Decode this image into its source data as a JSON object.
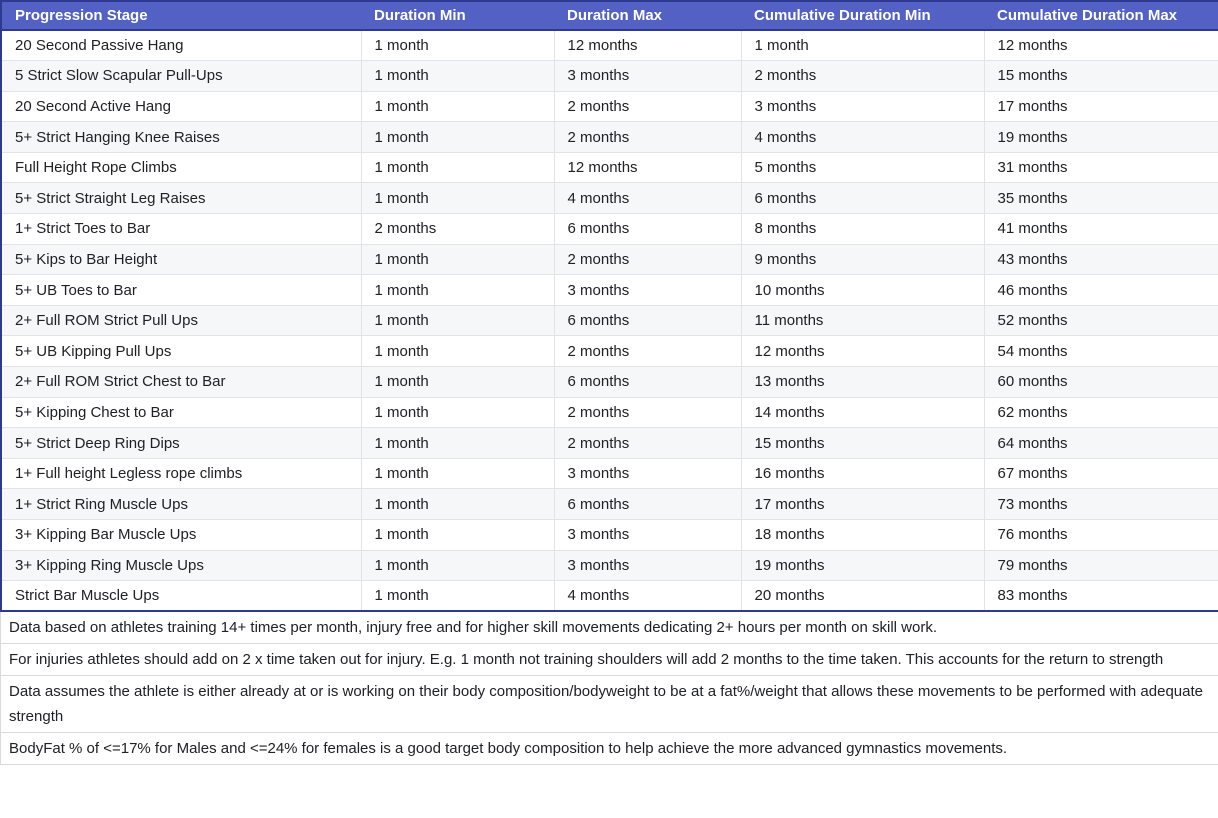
{
  "colors": {
    "header_bg": "#5361c4",
    "header_text": "#ffffff",
    "outer_border": "#2e3a8e",
    "row_stripe": "#f6f7f9",
    "grid_line": "#e2e3e5",
    "note_separator": "#d9dadc",
    "body_text": "#202124"
  },
  "table": {
    "columns": [
      "Progression Stage",
      "Duration Min",
      "Duration Max",
      "Cumulative Duration Min",
      "Cumulative Duration Max"
    ],
    "rows": [
      [
        "20 Second Passive Hang",
        "1 month",
        "12 months",
        "1 month",
        "12 months"
      ],
      [
        "5 Strict Slow Scapular Pull-Ups",
        "1 month",
        "3 months",
        "2 months",
        "15 months"
      ],
      [
        "20 Second Active Hang",
        "1 month",
        "2 months",
        "3 months",
        "17 months"
      ],
      [
        "5+ Strict Hanging Knee Raises",
        "1 month",
        "2 months",
        "4 months",
        "19 months"
      ],
      [
        "Full Height Rope Climbs",
        "1 month",
        "12 months",
        "5 months",
        "31 months"
      ],
      [
        "5+ Strict Straight Leg Raises",
        "1 month",
        "4 months",
        "6 months",
        "35 months"
      ],
      [
        "1+ Strict Toes to Bar",
        "2 months",
        "6 months",
        "8 months",
        "41 months"
      ],
      [
        "5+ Kips to Bar Height",
        "1 month",
        "2 months",
        "9 months",
        "43 months"
      ],
      [
        "5+ UB Toes to Bar",
        "1 month",
        "3 months",
        "10 months",
        "46 months"
      ],
      [
        "2+ Full ROM Strict Pull Ups",
        "1 month",
        "6 months",
        "11 months",
        "52 months"
      ],
      [
        "5+ UB Kipping Pull Ups",
        "1 month",
        "2 months",
        "12 months",
        "54 months"
      ],
      [
        "2+ Full ROM Strict Chest to Bar",
        "1 month",
        "6 months",
        "13 months",
        "60 months"
      ],
      [
        "5+ Kipping Chest to Bar",
        "1 month",
        "2 months",
        "14 months",
        "62 months"
      ],
      [
        "5+ Strict Deep Ring Dips",
        "1 month",
        "2 months",
        "15 months",
        "64 months"
      ],
      [
        "1+ Full height Legless rope climbs",
        "1 month",
        "3 months",
        "16 months",
        "67 months"
      ],
      [
        "1+ Strict Ring Muscle Ups",
        "1 month",
        "6 months",
        "17 months",
        "73 months"
      ],
      [
        "3+ Kipping Bar Muscle Ups",
        "1 month",
        "3 months",
        "18 months",
        "76 months"
      ],
      [
        "3+ Kipping Ring Muscle Ups",
        "1 month",
        "3 months",
        "19 months",
        "79 months"
      ],
      [
        "Strict Bar Muscle Ups",
        "1 month",
        "4 months",
        "20 months",
        "83 months"
      ]
    ]
  },
  "notes": [
    "Data based on athletes training 14+ times per month, injury free and for higher skill movements dedicating 2+ hours per month on skill work.",
    "For injuries athletes should add on 2 x time taken out for injury. E.g. 1 month not training shoulders will add 2 months to the time taken. This accounts for the return to strength",
    "Data assumes the athlete is either already at or is working on their body composition/bodyweight to be at a fat%/weight that allows these movements to be performed with adequate strength",
    "BodyFat % of <=17% for Males and <=24% for females is a good target body composition to help achieve the more advanced gymnastics movements."
  ]
}
